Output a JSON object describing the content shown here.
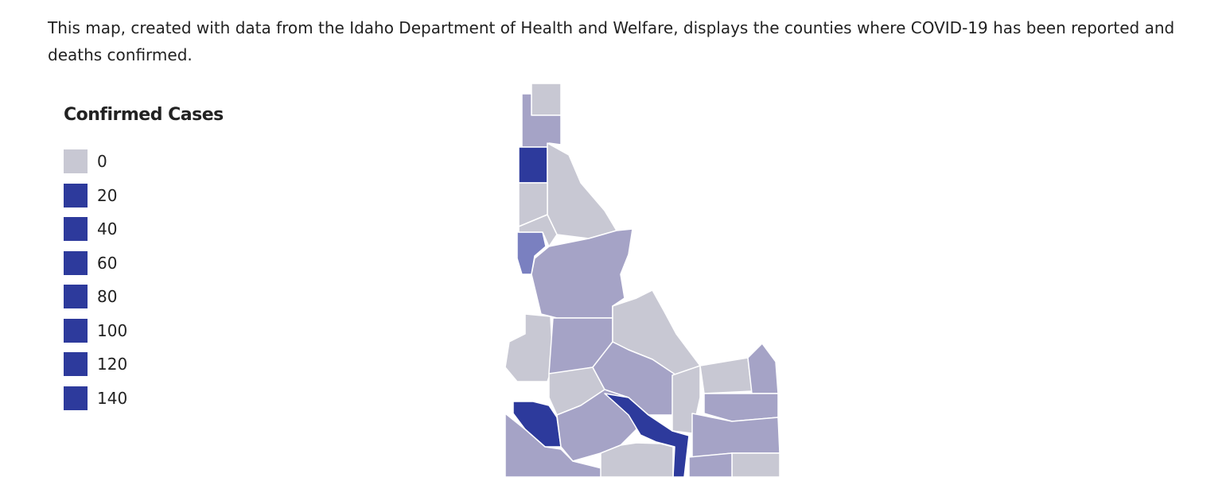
{
  "description": "This map, created with data from the Idaho Department of Health and Welfare, displays the counties where COVID-19 has been reported and deaths confirmed.",
  "legend": {
    "title": "Confirmed Cases",
    "items": [
      {
        "label": "0",
        "color": "#c8c8d3"
      },
      {
        "label": "20",
        "color": "#2d3a9c"
      },
      {
        "label": "40",
        "color": "#2d3a9c"
      },
      {
        "label": "60",
        "color": "#2d3a9c"
      },
      {
        "label": "80",
        "color": "#2d3a9c"
      },
      {
        "label": "100",
        "color": "#2d3a9c"
      },
      {
        "label": "120",
        "color": "#2d3a9c"
      },
      {
        "label": "140",
        "color": "#2d3a9c"
      }
    ]
  }
}
